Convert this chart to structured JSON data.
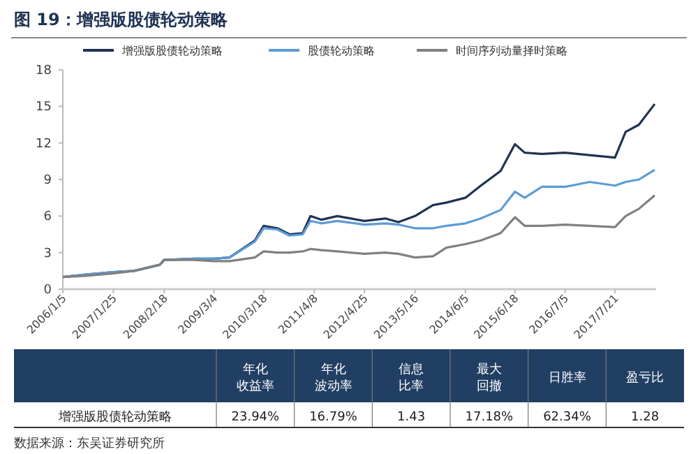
{
  "chart_data": {
    "type": "line",
    "title": "图 19：增强版股债轮动策略",
    "x": [
      "2006-01-05",
      "2006-07-01",
      "2007-01-25",
      "2007-07-01",
      "2008-01-15",
      "2008-02-18",
      "2008-10-01",
      "2009-03-04",
      "2009-07-01",
      "2010-01-10",
      "2010-03-18",
      "2010-07-01",
      "2010-10-01",
      "2011-01-10",
      "2011-03-10",
      "2011-06-01",
      "2011-10-01",
      "2012-04-25",
      "2012-10-01",
      "2013-01-10",
      "2013-05-16",
      "2013-10-01",
      "2014-01-10",
      "2014-06-05",
      "2014-10-01",
      "2015-03-01",
      "2015-06-18",
      "2015-09-01",
      "2016-01-10",
      "2016-07-05",
      "2017-01-10",
      "2017-07-21",
      "2017-10-10",
      "2018-01-20",
      "2018-05-20"
    ],
    "series": [
      {
        "name": "增强版股债轮动策略",
        "color": "#1f3352",
        "values": [
          1.0,
          1.2,
          1.4,
          1.5,
          2.0,
          2.4,
          2.5,
          2.5,
          2.6,
          4.0,
          5.2,
          5.0,
          4.5,
          4.6,
          6.0,
          5.7,
          6.0,
          5.6,
          5.8,
          5.5,
          6.0,
          6.9,
          7.1,
          7.5,
          8.5,
          9.7,
          11.9,
          11.2,
          11.1,
          11.2,
          11.0,
          10.8,
          12.9,
          13.5,
          15.2
        ]
      },
      {
        "name": "股债轮动策略",
        "color": "#5b9bd5",
        "values": [
          1.0,
          1.2,
          1.4,
          1.5,
          2.0,
          2.4,
          2.5,
          2.5,
          2.6,
          3.9,
          5.0,
          4.9,
          4.4,
          4.5,
          5.6,
          5.4,
          5.6,
          5.3,
          5.4,
          5.3,
          5.0,
          5.0,
          5.2,
          5.4,
          5.8,
          6.5,
          8.0,
          7.5,
          8.4,
          8.4,
          8.8,
          8.5,
          8.8,
          9.0,
          9.8
        ]
      },
      {
        "name": "时间序列动量择时策略",
        "color": "#808080",
        "values": [
          1.0,
          1.1,
          1.3,
          1.5,
          2.0,
          2.4,
          2.4,
          2.3,
          2.3,
          2.6,
          3.1,
          3.0,
          3.0,
          3.1,
          3.3,
          3.2,
          3.1,
          2.9,
          3.0,
          2.9,
          2.6,
          2.7,
          3.4,
          3.7,
          4.0,
          4.6,
          5.9,
          5.2,
          5.2,
          5.3,
          5.2,
          5.1,
          6.0,
          6.6,
          7.7
        ]
      }
    ],
    "xlim": [
      "2006-01-05",
      "2018-05-31"
    ],
    "xticks": [
      {
        "value": "2006-01-05",
        "label": "2006/1/5"
      },
      {
        "value": "2007-01-25",
        "label": "2007/1/25"
      },
      {
        "value": "2008-02-18",
        "label": "2008/2/18"
      },
      {
        "value": "2009-03-04",
        "label": "2009/3/4"
      },
      {
        "value": "2010-03-18",
        "label": "2010/3/18"
      },
      {
        "value": "2011-04-08",
        "label": "2011/4/8"
      },
      {
        "value": "2012-04-25",
        "label": "2012/4/25"
      },
      {
        "value": "2013-05-16",
        "label": "2013/5/16"
      },
      {
        "value": "2014-06-05",
        "label": "2014/6/5"
      },
      {
        "value": "2015-06-18",
        "label": "2015/6/18"
      },
      {
        "value": "2016-07-05",
        "label": "2016/7/5"
      },
      {
        "value": "2017-07-21",
        "label": "2017/7/21"
      }
    ],
    "ylim": [
      0,
      18
    ],
    "yticks": [
      0,
      3,
      6,
      9,
      12,
      15,
      18
    ],
    "grid": false,
    "legend": "top",
    "line_style": "solid",
    "marker": "none",
    "annotations": [
      "年化收益率",
      "年化波动率",
      "信息比率",
      "最大回撤",
      "日胜率",
      "盈亏比",
      "增强版股债轮动策略",
      "23.94%",
      "16.79%",
      "1.43",
      "17.18%",
      "62.34%",
      "1.28",
      "数据来源：东吴证券研究所"
    ]
  }
}
